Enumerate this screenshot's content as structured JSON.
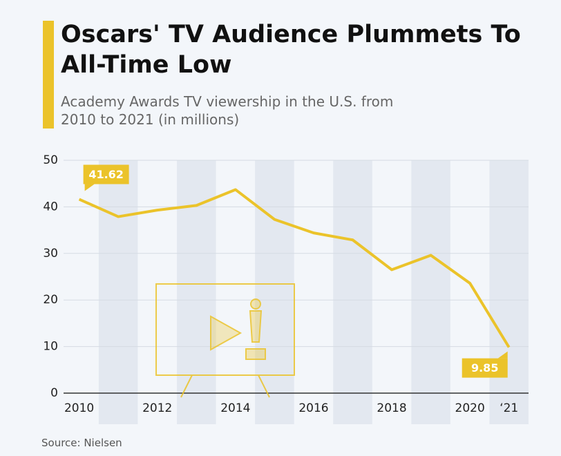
{
  "chart_data": {
    "type": "line",
    "title": "Oscars' TV Audience Plummets To All-Time Low",
    "subtitle": "Academy Awards TV viewership in the U.S. from 2010 to 2021 (in millions)",
    "source": "Source: Nielsen",
    "x": [
      2010,
      2011,
      2012,
      2013,
      2014,
      2015,
      2016,
      2017,
      2018,
      2019,
      2020,
      2021
    ],
    "values": [
      41.62,
      37.9,
      39.3,
      40.3,
      43.7,
      37.3,
      34.4,
      32.9,
      26.5,
      29.6,
      23.6,
      9.85
    ],
    "color": "#ebc32a",
    "xlim": [
      2009.6,
      2021.5
    ],
    "xticks": [
      2010,
      2012,
      2014,
      2016,
      2018,
      2020,
      {
        "value": 2021,
        "label": "‘21"
      }
    ],
    "ylim": [
      0,
      50
    ],
    "yticks": [
      0,
      10,
      20,
      30,
      40,
      50
    ],
    "grid": true
  }
}
